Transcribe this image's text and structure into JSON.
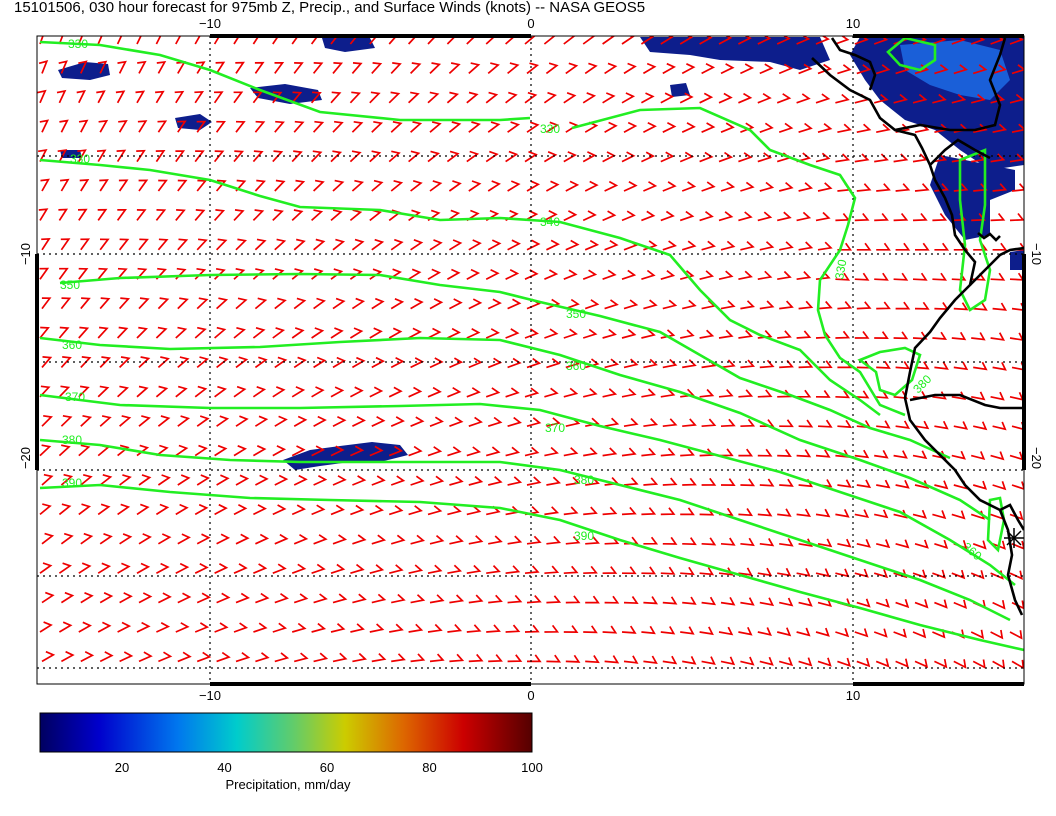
{
  "title": "15101506, 030 hour forecast for 975mb Z, Precip., and Surface Winds (knots) -- NASA GEOS5",
  "axes": {
    "x_ticks": [
      "−10",
      "0",
      "10"
    ],
    "y_ticks": [
      "−10",
      "−20"
    ]
  },
  "contours": [
    {
      "label": "330"
    },
    {
      "label": "330"
    },
    {
      "label": "330"
    },
    {
      "label": "340"
    },
    {
      "label": "350"
    },
    {
      "label": "360"
    },
    {
      "label": "370"
    },
    {
      "label": "380"
    },
    {
      "label": "390"
    },
    {
      "label": "350"
    },
    {
      "label": "360"
    },
    {
      "label": "370"
    },
    {
      "label": "380"
    },
    {
      "label": "390"
    },
    {
      "label": "330"
    },
    {
      "label": "380"
    },
    {
      "label": "360"
    }
  ],
  "colorbar": {
    "title": "Precipitation, mm/day",
    "ticks": [
      "20",
      "40",
      "60",
      "80",
      "100"
    ],
    "range": [
      4,
      100
    ]
  },
  "colors": {
    "contour": "#22ee22",
    "wind_barb": "#ee0000",
    "coastline": "#000000",
    "precip_low": "#0a1f8f"
  }
}
